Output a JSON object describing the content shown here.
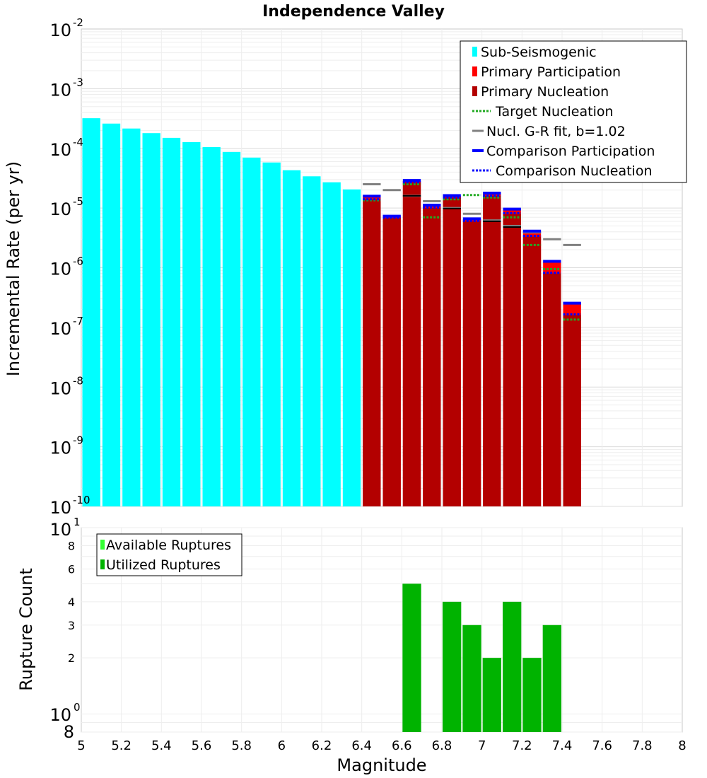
{
  "chart_data": [
    {
      "type": "bar",
      "title": "Independence Valley",
      "xlabel": "Magnitude",
      "ylabel": "Incremental Rate (per yr)",
      "xlim": [
        5,
        8
      ],
      "ylim_log10": [
        -10,
        -2
      ],
      "y_tick_exponents": [
        "-2",
        "-3",
        "-4",
        "-5",
        "-6",
        "-7",
        "-8",
        "-9",
        "-10"
      ],
      "legend": [
        {
          "label": "Sub-Seismogenic",
          "color": "#00ffff",
          "style": "bar"
        },
        {
          "label": "Primary Participation",
          "color": "#ff0000",
          "style": "bar"
        },
        {
          "label": "Primary Nucleation",
          "color": "#b30000",
          "style": "bar"
        },
        {
          "label": "Target Nucleation",
          "color": "#22aa22",
          "style": "dotted"
        },
        {
          "label": "Nucl. G-R fit, b=1.02",
          "color": "#808080",
          "style": "solid"
        },
        {
          "label": "Comparison Participation",
          "color": "#0000ff",
          "style": "solid-thick"
        },
        {
          "label": "Comparison Nucleation",
          "color": "#0000ff",
          "style": "dotted"
        }
      ],
      "sub_seismogenic": {
        "mags": [
          5.05,
          5.15,
          5.25,
          5.35,
          5.45,
          5.55,
          5.65,
          5.75,
          5.85,
          5.95,
          6.05,
          6.15,
          6.25,
          6.35
        ],
        "values": [
          0.00032,
          0.00026,
          0.000215,
          0.00018,
          0.00015,
          0.000127,
          0.000105,
          8.7e-05,
          7e-05,
          5.8e-05,
          4.3e-05,
          3.4e-05,
          2.7e-05,
          2.05e-05
        ]
      },
      "primary": {
        "mags": [
          6.45,
          6.55,
          6.65,
          6.75,
          6.85,
          6.95,
          7.05,
          7.15,
          7.25,
          7.35,
          7.45
        ],
        "participation": [
          1.55e-05,
          7.2e-06,
          2.85e-05,
          1.1e-05,
          1.6e-05,
          6.5e-06,
          1.75e-05,
          9.5e-06,
          4e-06,
          1.25e-06,
          2.5e-07
        ],
        "nucleation": [
          1.4e-05,
          6.8e-06,
          2.7e-05,
          1e-05,
          1.5e-05,
          6e-06,
          1.6e-05,
          8e-06,
          3.3e-06,
          8e-07,
          1.6e-07
        ],
        "comparison_participation": [
          1.58e-05,
          7.3e-06,
          2.9e-05,
          1.12e-05,
          1.62e-05,
          6.6e-06,
          1.78e-05,
          9.6e-06,
          4.1e-06,
          1.28e-06,
          2.55e-07
        ],
        "comparison_nucleation": [
          1.4e-05,
          6.9e-06,
          2.7e-05,
          1.02e-05,
          1.5e-05,
          6.1e-06,
          1.6e-05,
          8.2e-06,
          3.4e-06,
          8.2e-07,
          1.65e-07
        ],
        "target_nucleation": [
          1.35e-05,
          null,
          2.5e-05,
          7e-06,
          1.4e-05,
          1.65e-05,
          1.5e-05,
          7e-06,
          2.4e-06,
          9.5e-07,
          1.35e-07
        ],
        "black_lines": [
          null,
          null,
          1.6e-05,
          null,
          9.8e-06,
          null,
          6e-06,
          4.8e-06,
          null,
          null,
          null
        ]
      },
      "gr_fit": {
        "mags": [
          6.45,
          6.55,
          6.65,
          6.75,
          6.85,
          6.95,
          7.05,
          7.15,
          7.25,
          7.35,
          7.45
        ],
        "values": [
          2.5e-05,
          2e-05,
          1.6e-05,
          1.3e-05,
          1e-05,
          8e-06,
          6.2e-06,
          5e-06,
          3.9e-06,
          3e-06,
          2.4e-06
        ]
      }
    },
    {
      "type": "bar",
      "xlabel": "Magnitude",
      "ylabel": "Rupture Count",
      "xlim": [
        5,
        8
      ],
      "ylim": [
        0.8,
        10
      ],
      "x_ticks": [
        "5",
        "5.2",
        "5.4",
        "5.6",
        "5.8",
        "6",
        "6.2",
        "6.4",
        "6.6",
        "6.8",
        "7",
        "7.2",
        "7.4",
        "7.6",
        "7.8",
        "8"
      ],
      "y_ticks_small": [
        "8",
        "6",
        "4",
        "3",
        "2"
      ],
      "y_tick_labels": {
        "ten": "10",
        "exp1": "1",
        "exp0": "0",
        "eight": "8"
      },
      "legend": [
        {
          "label": "Available Ruptures",
          "color": "#33ff33"
        },
        {
          "label": "Utilized Ruptures",
          "color": "#00b300"
        }
      ],
      "mags": [
        6.65,
        6.85,
        6.95,
        7.05,
        7.15,
        7.25,
        7.35
      ],
      "values": [
        5,
        4,
        3,
        2,
        4,
        2,
        3
      ]
    }
  ]
}
